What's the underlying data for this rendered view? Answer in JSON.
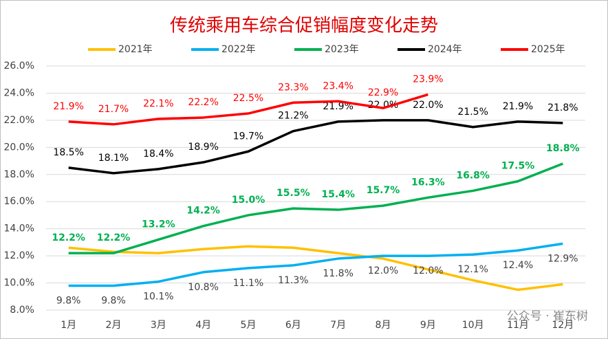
{
  "chart_data": {
    "type": "line",
    "title": "传统乘用车综合促销幅度变化走势",
    "categories": [
      "1月",
      "2月",
      "3月",
      "4月",
      "5月",
      "6月",
      "7月",
      "8月",
      "9月",
      "10月",
      "11月",
      "12月"
    ],
    "ylim": [
      8,
      26
    ],
    "yticks": [
      {
        "value": 8,
        "label": "8.0%"
      },
      {
        "value": 10,
        "label": "10.0%"
      },
      {
        "value": 12,
        "label": "12.0%"
      },
      {
        "value": 14,
        "label": "14.0%"
      },
      {
        "value": 16,
        "label": "16.0%"
      },
      {
        "value": 18,
        "label": "18.0%"
      },
      {
        "value": 20,
        "label": "20.0%"
      },
      {
        "value": 22,
        "label": "22.0%"
      },
      {
        "value": 24,
        "label": "24.0%"
      },
      {
        "value": 26,
        "label": "26.0%"
      }
    ],
    "grid": true,
    "legend": "top",
    "series": [
      {
        "name": "2021年",
        "color": "#FFC000",
        "values": [
          12.6,
          12.3,
          12.2,
          12.5,
          12.7,
          12.6,
          12.2,
          11.8,
          11.0,
          10.2,
          9.5,
          9.9
        ]
      },
      {
        "name": "2022年",
        "color": "#00B0F0",
        "values": [
          9.8,
          9.8,
          10.1,
          10.8,
          11.1,
          11.3,
          11.8,
          12.0,
          12.0,
          12.1,
          12.4,
          12.9
        ],
        "value_labels": [
          "9.8%",
          "9.8%",
          "10.1%",
          "10.8%",
          "11.1%",
          "11.3%",
          "11.8%",
          "12.0%",
          "12.0%",
          "12.1%",
          "12.4%",
          "12.9%"
        ]
      },
      {
        "name": "2023年",
        "color": "#00B050",
        "values": [
          12.2,
          12.2,
          13.2,
          14.2,
          15.0,
          15.5,
          15.4,
          15.7,
          16.3,
          16.8,
          17.5,
          18.8
        ],
        "value_labels": [
          "12.2%",
          "12.2%",
          "13.2%",
          "14.2%",
          "15.0%",
          "15.5%",
          "15.4%",
          "15.7%",
          "16.3%",
          "16.8%",
          "17.5%",
          "18.8%"
        ]
      },
      {
        "name": "2024年",
        "color": "#000000",
        "values": [
          18.5,
          18.1,
          18.4,
          18.9,
          19.7,
          21.2,
          21.9,
          22.0,
          22.0,
          21.5,
          21.9,
          21.8
        ],
        "value_labels": [
          "18.5%",
          "18.1%",
          "18.4%",
          "18.9%",
          "19.7%",
          "21.2%",
          "21.9%",
          "22.0%",
          "22.0%",
          "21.5%",
          "21.9%",
          "21.8%"
        ]
      },
      {
        "name": "2025年",
        "color": "#FF0000",
        "values": [
          21.9,
          21.7,
          22.1,
          22.2,
          22.5,
          23.3,
          23.4,
          22.9,
          23.9,
          null,
          null,
          null
        ],
        "value_labels": [
          "21.9%",
          "21.7%",
          "22.1%",
          "22.2%",
          "22.5%",
          "23.3%",
          "23.4%",
          "22.9%",
          "23.9%",
          null,
          null,
          null
        ]
      }
    ],
    "watermark": "公众号 · 崔东树"
  }
}
